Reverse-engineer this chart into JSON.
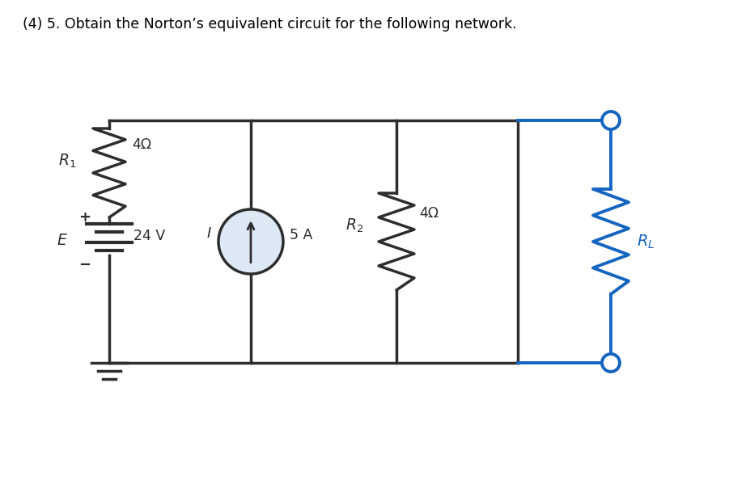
{
  "title": "(4) 5. Obtain the Norton’s equivalent circuit for the following network.",
  "bg_color": "#ffffff",
  "circuit_color": "#2d2d2d",
  "blue_color": "#1565c0",
  "R1_label": "$R_1$",
  "R1_ohm": "4Ω",
  "R2_label": "$R_2$",
  "R2_ohm": "4Ω",
  "I_label": "$I$",
  "I_val": "5 A",
  "E_label": "$E$",
  "E_val": "24 V",
  "RL_label": "$R_L$",
  "lw_main": 2.5,
  "lw_blue": 2.8,
  "res_amp": 0.18,
  "res_teeth": 4
}
